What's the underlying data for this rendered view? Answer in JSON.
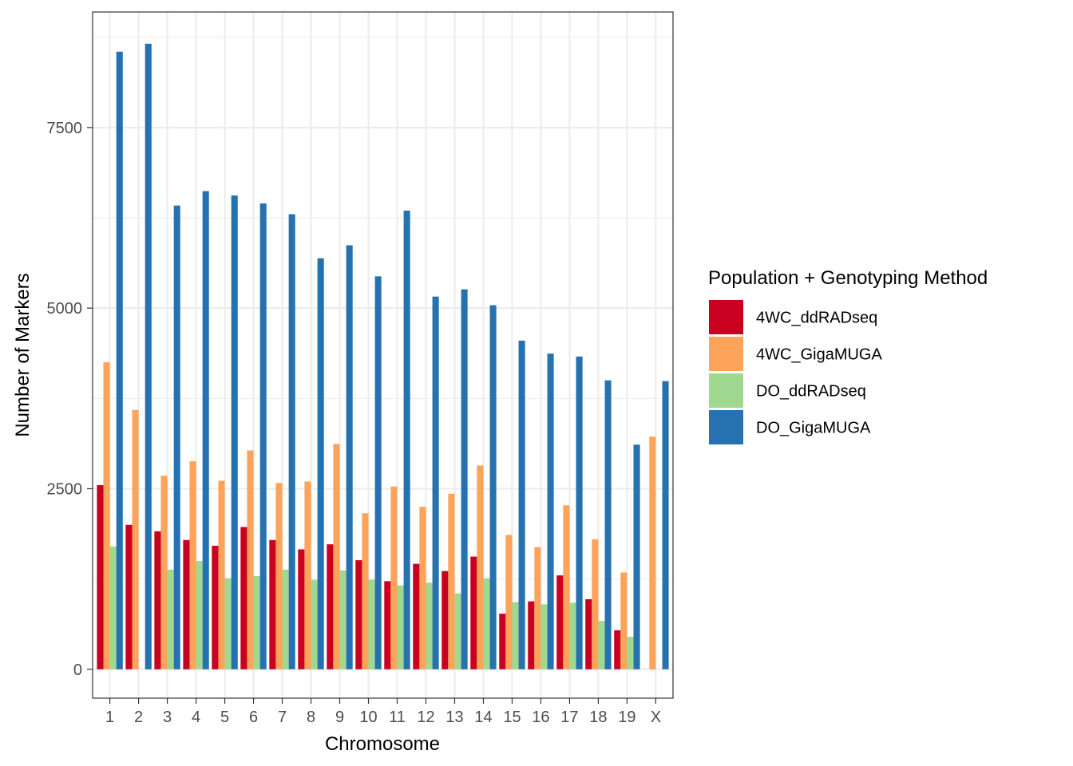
{
  "chart_data": {
    "type": "bar",
    "title": "",
    "xlabel": "Chromosome",
    "ylabel": "Number of Markers",
    "ylim": [
      -400,
      9100
    ],
    "yticks": [
      0,
      2500,
      5000,
      7500
    ],
    "grid": true,
    "legend_position": "right",
    "legend_title": "Population + Genotyping Method",
    "categories": [
      "1",
      "2",
      "3",
      "4",
      "5",
      "6",
      "7",
      "8",
      "9",
      "10",
      "11",
      "12",
      "13",
      "14",
      "15",
      "16",
      "17",
      "18",
      "19",
      "X"
    ],
    "series": [
      {
        "name": "4WC_ddRADseq",
        "color": "#CA0020",
        "values": [
          2550,
          2000,
          1910,
          1790,
          1710,
          1970,
          1790,
          1660,
          1730,
          1510,
          1220,
          1460,
          1360,
          1560,
          770,
          940,
          1300,
          970,
          540,
          0
        ]
      },
      {
        "name": "4WC_GigaMUGA",
        "color": "#FDA35A",
        "values": [
          4250,
          3590,
          2680,
          2880,
          2610,
          3030,
          2580,
          2600,
          3120,
          2160,
          2530,
          2250,
          2430,
          2820,
          1860,
          1690,
          2270,
          1800,
          1340,
          3220
        ]
      },
      {
        "name": "DO_ddRADseq",
        "color": "#A1D890",
        "values": [
          1700,
          0,
          1380,
          1500,
          1260,
          1290,
          1380,
          1240,
          1370,
          1240,
          1160,
          1200,
          1050,
          1260,
          930,
          900,
          920,
          670,
          450,
          0
        ]
      },
      {
        "name": "DO_GigaMUGA",
        "color": "#2672B0",
        "values": [
          8550,
          8660,
          6420,
          6620,
          6560,
          6450,
          6300,
          5690,
          5870,
          5440,
          6350,
          5160,
          5260,
          5040,
          4550,
          4370,
          4330,
          4000,
          3110,
          3990
        ]
      }
    ]
  }
}
